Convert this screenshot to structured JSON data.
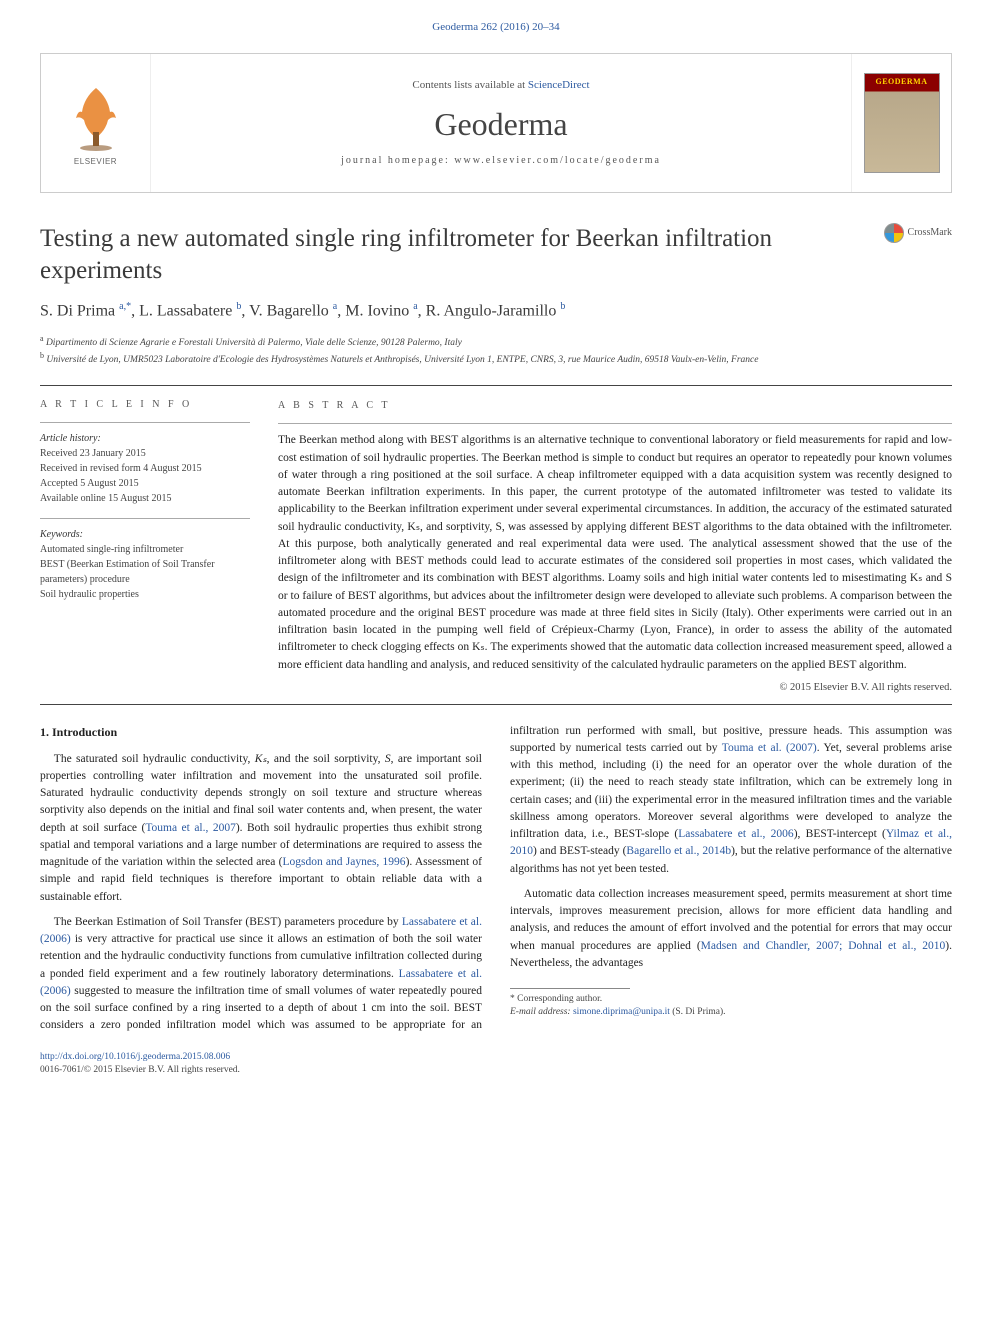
{
  "top_reference": "Geoderma 262 (2016) 20–34",
  "banner": {
    "sciencedirect_prefix": "Contents lists available at ",
    "sciencedirect_link": "ScienceDirect",
    "journal": "Geoderma",
    "homepage_prefix": "journal homepage: ",
    "homepage": "www.elsevier.com/locate/geoderma",
    "elsevier_label": "ELSEVIER",
    "cover_title": "GEODERMA",
    "colors": {
      "link": "#2c5aa0",
      "rule": "#444444",
      "cover_top": "#8b0000",
      "cover_body": "#c8b898",
      "cover_title_color": "#ffd700"
    }
  },
  "title": "Testing a new automated single ring infiltrometer for Beerkan infiltration experiments",
  "crossmark_label": "CrossMark",
  "authors_html": "S. Di Prima <sup>a,*</sup>, L. Lassabatere <sup>b</sup>, V. Bagarello <sup>a</sup>, M. Iovino <sup>a</sup>, R. Angulo-Jaramillo <sup>b</sup>",
  "affiliations": {
    "a": "Dipartimento di Scienze Agrarie e Forestali Università di Palermo, Viale delle Scienze, 90128 Palermo, Italy",
    "b": "Université de Lyon, UMR5023 Laboratoire d'Ecologie des Hydrosystèmes Naturels et Anthropisés, Université Lyon 1, ENTPE, CNRS, 3, rue Maurice Audin, 69518 Vaulx-en-Velin, France"
  },
  "article_info": {
    "heading": "a r t i c l e   i n f o",
    "history_label": "Article history:",
    "history": [
      "Received 23 January 2015",
      "Received in revised form 4 August 2015",
      "Accepted 5 August 2015",
      "Available online 15 August 2015"
    ],
    "keywords_label": "Keywords:",
    "keywords": [
      "Automated single-ring infiltrometer",
      "BEST (Beerkan Estimation of Soil Transfer parameters) procedure",
      "Soil hydraulic properties"
    ]
  },
  "abstract": {
    "heading": "a b s t r a c t",
    "text": "The Beerkan method along with BEST algorithms is an alternative technique to conventional laboratory or field measurements for rapid and low-cost estimation of soil hydraulic properties. The Beerkan method is simple to conduct but requires an operator to repeatedly pour known volumes of water through a ring positioned at the soil surface. A cheap infiltrometer equipped with a data acquisition system was recently designed to automate Beerkan infiltration experiments. In this paper, the current prototype of the automated infiltrometer was tested to validate its applicability to the Beerkan infiltration experiment under several experimental circumstances. In addition, the accuracy of the estimated saturated soil hydraulic conductivity, Kₛ, and sorptivity, S, was assessed by applying different BEST algorithms to the data obtained with the infiltrometer. At this purpose, both analytically generated and real experimental data were used. The analytical assessment showed that the use of the infiltrometer along with BEST methods could lead to accurate estimates of the considered soil properties in most cases, which validated the design of the infiltrometer and its combination with BEST algorithms. Loamy soils and high initial water contents led to misestimating Kₛ and S or to failure of BEST algorithms, but advices about the infiltrometer design were developed to alleviate such problems. A comparison between the automated procedure and the original BEST procedure was made at three field sites in Sicily (Italy). Other experiments were carried out in an infiltration basin located in the pumping well field of Crépieux-Charmy (Lyon, France), in order to assess the ability of the automated infiltrometer to check clogging effects on Kₛ. The experiments showed that the automatic data collection increased measurement speed, allowed a more efficient data handling and analysis, and reduced sensitivity of the calculated hydraulic parameters on the applied BEST algorithm.",
    "copyright": "© 2015 Elsevier B.V. All rights reserved."
  },
  "body": {
    "section_heading": "1. Introduction",
    "p1_a": "The saturated soil hydraulic conductivity, ",
    "p1_ks": "Kₛ",
    "p1_b": ", and the soil sorptivity, ",
    "p1_s": "S",
    "p1_c": ", are important soil properties controlling water infiltration and movement into the unsaturated soil profile. Saturated hydraulic conductivity depends strongly on soil texture and structure whereas sorptivity also depends on the initial and final soil water contents and, when present, the water depth at soil surface (",
    "p1_ref1": "Touma et al., 2007",
    "p1_d": "). Both soil hydraulic properties thus exhibit strong spatial and temporal variations and a large number of determinations are required to assess the magnitude of the variation within the selected area (",
    "p1_ref2": "Logsdon and Jaynes, 1996",
    "p1_e": "). Assessment of simple and rapid field techniques is therefore important to obtain reliable data with a sustainable effort.",
    "p2_a": "The Beerkan Estimation of Soil Transfer (BEST) parameters procedure by ",
    "p2_ref1": "Lassabatere et al. (2006)",
    "p2_b": " is very attractive for practical use since it allows an estimation of both the soil water retention and the hydraulic conductivity functions from cumulative infiltration collected during a ponded field experiment and a few routinely laboratory determinations. ",
    "p2_ref2": "Lassabatere et al. (2006)",
    "p2_c": " suggested to measure the infiltration time of small volumes of water repeatedly poured on the soil surface confined by a ring inserted to a depth of about 1 cm into the soil. BEST considers a zero ponded infiltration model which was assumed to be appropriate for an infiltration run performed with small, but positive, pressure heads. This assumption was supported by numerical tests carried out by ",
    "p2_ref3": "Touma et al. (2007)",
    "p2_d": ". Yet, several problems arise with this method, including (i) the need for an operator over the whole duration of the experiment; (ii) the need to reach steady state infiltration, which can be extremely long in certain cases; and (iii) the experimental error in the measured infiltration times and the variable skillness among operators. Moreover several algorithms were developed to analyze the infiltration data, i.e., BEST-slope (",
    "p2_ref4": "Lassabatere et al., 2006",
    "p2_e": "), BEST-intercept (",
    "p2_ref5": "Yilmaz et al., 2010",
    "p2_f": ") and BEST-steady (",
    "p2_ref6": "Bagarello et al., 2014b",
    "p2_g": "), but the relative performance of the alternative algorithms has not yet been tested.",
    "p3_a": "Automatic data collection increases measurement speed, permits measurement at short time intervals, improves measurement precision, allows for more efficient data handling and analysis, and reduces the amount of effort involved and the potential for errors that may occur when manual procedures are applied (",
    "p3_ref1": "Madsen and Chandler, 2007; Dohnal et al., 2010",
    "p3_b": "). Nevertheless, the advantages"
  },
  "footnotes": {
    "corresponding": "* Corresponding author.",
    "email_label": "E-mail address: ",
    "email": "simone.diprima@unipa.it",
    "email_suffix": " (S. Di Prima)."
  },
  "footer": {
    "doi": "http://dx.doi.org/10.1016/j.geoderma.2015.08.006",
    "issn_line": "0016-7061/© 2015 Elsevier B.V. All rights reserved."
  }
}
